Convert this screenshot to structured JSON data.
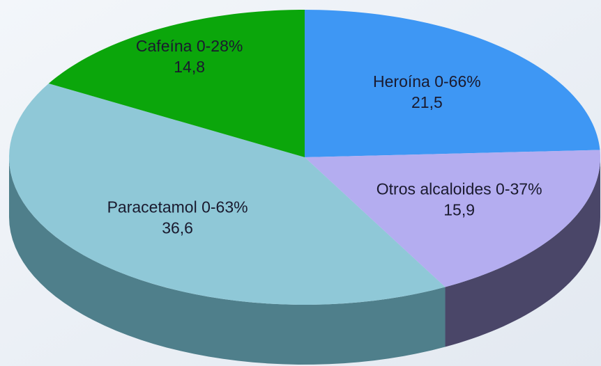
{
  "chart_data": {
    "type": "pie",
    "categories": [
      "Heroína 0-66%",
      "Otros alcaloides 0-37%",
      "Paracetamol 0-63%",
      "Cafeína 0-28%"
    ],
    "values": [
      21.5,
      15.9,
      36.6,
      14.8
    ],
    "value_labels": [
      "21,5",
      "15,9",
      "36,6",
      "14,8"
    ],
    "colors": [
      "#3e97f4",
      "#b4adf0",
      "#8fc8d7",
      "#0ba60b"
    ],
    "side_colors": [
      "#2a5d99",
      "#4a4668",
      "#4f7f8b",
      "#066606"
    ]
  }
}
